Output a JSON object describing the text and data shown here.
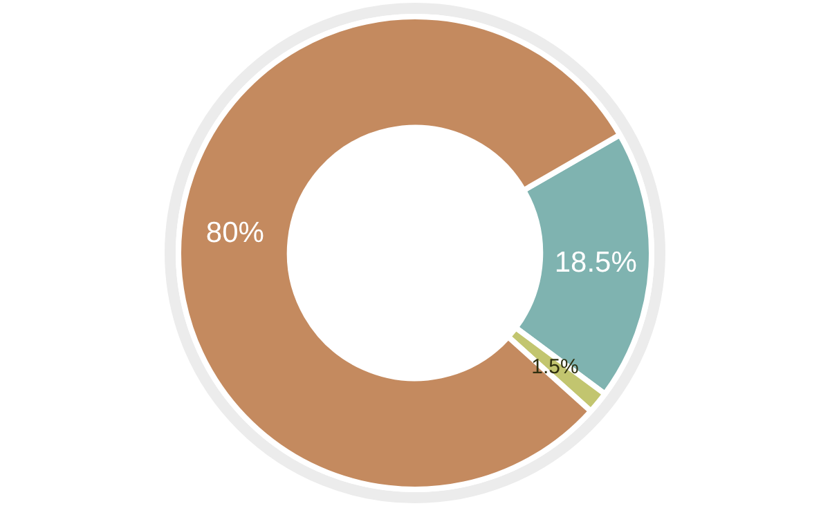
{
  "chart_data": {
    "type": "donut",
    "categories": [
      null,
      null,
      null
    ],
    "values": [
      18.5,
      1.5,
      80
    ],
    "colors": [
      "#7fb3b0",
      "#c2c56f",
      "#c48a5f"
    ],
    "value_labels": [
      "18.5%",
      "1.5%",
      "80%"
    ],
    "legend": false
  }
}
